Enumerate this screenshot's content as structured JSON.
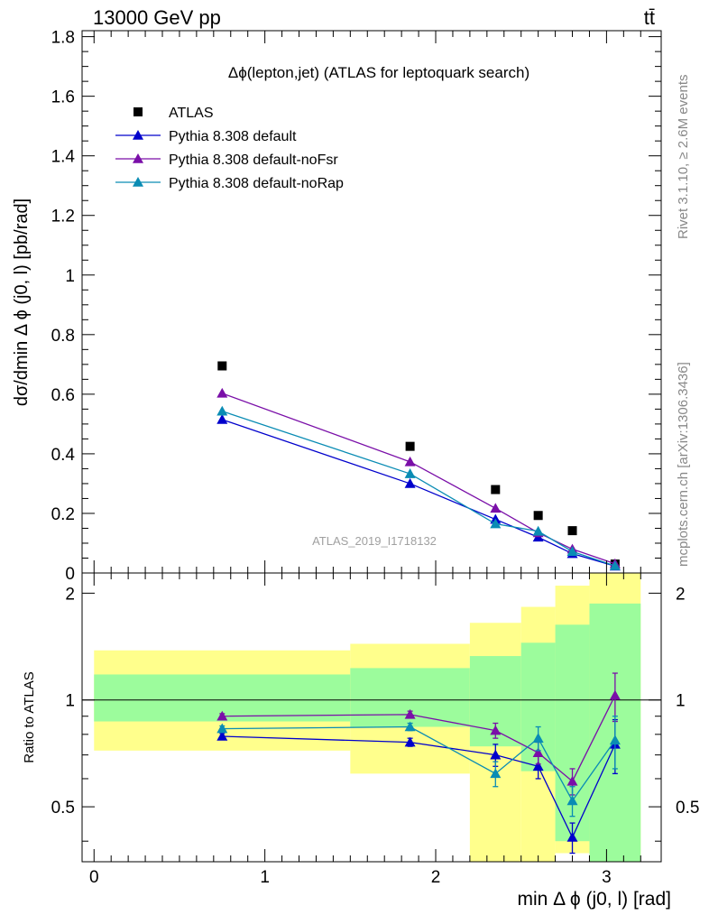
{
  "header": {
    "energy_label": "13000 GeV pp",
    "process_label": "tt̄"
  },
  "side_labels": {
    "rivet": "Rivet 3.1.10, ≥ 2.6M events",
    "mcplots": "mcplots.cern.ch [arXiv:1306.3436]"
  },
  "colors": {
    "data": "#000000",
    "default": "#0000cc",
    "noFsr": "#7a0fa8",
    "noRap": "#0a8cb4",
    "band_outer": "#ffff8c",
    "band_inner": "#9cfc9c"
  },
  "chart_data": [
    {
      "type": "scatter",
      "panel": "main",
      "title": "Δϕ(lepton,jet) (ATLAS for leptoquark search)",
      "ylabel": "dσ/dmin Δ ϕ (j0, l) [pb/rad]",
      "watermark": "ATLAS_2019_I1718132",
      "xlim": [
        -0.07,
        3.32
      ],
      "ylim": [
        0,
        1.82
      ],
      "yticks": [
        0,
        0.2,
        0.4,
        0.6,
        0.8,
        1,
        1.2,
        1.4,
        1.6,
        1.8
      ],
      "ytick_labels": [
        "0",
        "0.2",
        "0.4",
        "0.6",
        "0.8",
        "1",
        "1.2",
        "1.4",
        "1.6",
        "1.8"
      ],
      "grid": false,
      "legend_position": "top-left",
      "x": [
        0.75,
        1.85,
        2.35,
        2.6,
        2.8,
        3.05
      ],
      "series": [
        {
          "name": "ATLAS",
          "key": "data",
          "marker": "square",
          "values": [
            0.695,
            0.425,
            0.28,
            0.193,
            0.142,
            0.03
          ]
        },
        {
          "name": "Pythia 8.308 default",
          "key": "default",
          "marker": "triangle",
          "values": [
            0.515,
            0.3,
            0.18,
            0.12,
            0.065,
            0.023
          ]
        },
        {
          "name": "Pythia 8.308 default-noFsr",
          "key": "noFsr",
          "marker": "triangle",
          "values": [
            0.603,
            0.373,
            0.217,
            0.135,
            0.08,
            0.031
          ]
        },
        {
          "name": "Pythia 8.308 default-noRap",
          "key": "noRap",
          "marker": "triangle",
          "values": [
            0.543,
            0.333,
            0.165,
            0.14,
            0.072,
            0.024
          ]
        }
      ]
    },
    {
      "type": "line",
      "panel": "ratio",
      "ylabel": "Ratio to ATLAS",
      "xlabel": "min Δ ϕ (j0, l) [rad]",
      "xlim": [
        -0.07,
        3.32
      ],
      "ylim": [
        0.35,
        2.28
      ],
      "xticks": [
        0,
        1,
        2,
        3
      ],
      "xtick_labels": [
        "0",
        "1",
        "2",
        "3"
      ],
      "yticks": [
        0.5,
        1,
        2
      ],
      "ytick_labels": [
        "0.5",
        "1",
        "2"
      ],
      "x": [
        0.75,
        1.85,
        2.35,
        2.6,
        2.8,
        3.05
      ],
      "uncertainty_bands": [
        {
          "x_range": [
            0,
            1.5
          ],
          "outer": [
            0.72,
            1.38
          ],
          "inner": [
            0.87,
            1.18
          ]
        },
        {
          "x_range": [
            1.5,
            2.2
          ],
          "outer": [
            0.62,
            1.44
          ],
          "inner": [
            0.84,
            1.23
          ]
        },
        {
          "x_range": [
            2.2,
            2.5
          ],
          "outer": [
            0.35,
            1.65
          ],
          "inner": [
            0.74,
            1.33
          ]
        },
        {
          "x_range": [
            2.5,
            2.7
          ],
          "outer": [
            0.35,
            1.83
          ],
          "inner": [
            0.63,
            1.45
          ]
        },
        {
          "x_range": [
            2.7,
            2.9
          ],
          "outer": [
            0.37,
            2.1
          ],
          "inner": [
            0.4,
            1.63
          ]
        },
        {
          "x_range": [
            2.9,
            3.2
          ],
          "outer": [
            0.35,
            2.28
          ],
          "inner": [
            0.35,
            1.87
          ]
        }
      ],
      "series": [
        {
          "name": "Pythia 8.308 default",
          "key": "default",
          "values": [
            0.79,
            0.76,
            0.7,
            0.65,
            0.41,
            0.75
          ],
          "errors": [
            0.015,
            0.02,
            0.05,
            0.05,
            0.04,
            0.13
          ]
        },
        {
          "name": "Pythia 8.308 default-noFsr",
          "key": "noFsr",
          "values": [
            0.9,
            0.91,
            0.82,
            0.71,
            0.59,
            1.03
          ],
          "errors": [
            0.015,
            0.02,
            0.04,
            0.05,
            0.05,
            0.16
          ]
        },
        {
          "name": "Pythia 8.308 default-noRap",
          "key": "noRap",
          "values": [
            0.83,
            0.84,
            0.62,
            0.78,
            0.52,
            0.77
          ],
          "errors": [
            0.015,
            0.02,
            0.05,
            0.06,
            0.05,
            0.13
          ]
        }
      ]
    }
  ]
}
